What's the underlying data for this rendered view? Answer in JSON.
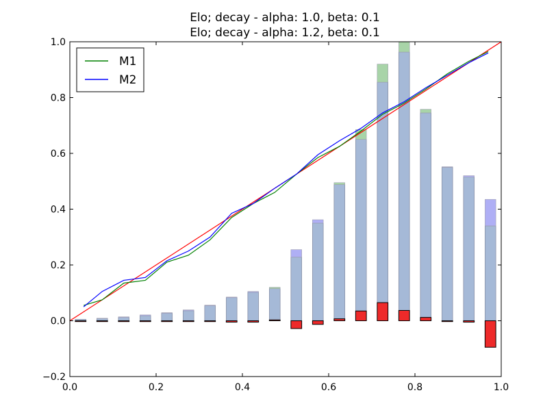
{
  "chart_data": {
    "type": "bar",
    "title_lines": [
      "Elo; decay - alpha: 1.0, beta: 0.1",
      "Elo; decay - alpha: 1.2, beta: 0.1"
    ],
    "xlabel": "",
    "ylabel": "",
    "xlim": [
      0.0,
      1.0
    ],
    "ylim": [
      -0.2,
      1.0
    ],
    "x_ticks": [
      "0.0",
      "0.2",
      "0.4",
      "0.6",
      "0.8",
      "1.0"
    ],
    "y_ticks": [
      "−0.2",
      "0.0",
      "0.2",
      "0.4",
      "0.6",
      "0.8",
      "1.0"
    ],
    "grid": false,
    "legend": {
      "position": "top-left",
      "entries": [
        {
          "name": "M1",
          "color": "#008000"
        },
        {
          "name": "M2",
          "color": "#0000ff"
        }
      ]
    },
    "colors": {
      "m1_bar": "#9fcf9f",
      "m2_bar": "#a6a6f4",
      "overlap_bar": "#a5b9d7",
      "diff_bar": "#ee2a2a",
      "diagonal": "#ff0000"
    },
    "bar_width": 0.025,
    "bars": {
      "x": [
        0.025,
        0.075,
        0.125,
        0.175,
        0.225,
        0.275,
        0.325,
        0.375,
        0.425,
        0.475,
        0.525,
        0.575,
        0.625,
        0.675,
        0.725,
        0.775,
        0.825,
        0.875,
        0.925,
        0.975
      ],
      "m1": [
        0.005,
        0.008,
        0.012,
        0.018,
        0.027,
        0.036,
        0.054,
        0.083,
        0.102,
        0.12,
        0.228,
        0.35,
        0.495,
        0.685,
        0.92,
        1.0,
        0.758,
        0.55,
        0.515,
        0.34
      ],
      "m2": [
        0.005,
        0.009,
        0.014,
        0.021,
        0.029,
        0.039,
        0.056,
        0.085,
        0.105,
        0.115,
        0.255,
        0.362,
        0.488,
        0.65,
        0.855,
        0.963,
        0.745,
        0.552,
        0.52,
        0.435
      ],
      "diff": [
        -0.002,
        -0.002,
        -0.003,
        -0.003,
        -0.003,
        -0.003,
        -0.003,
        -0.005,
        -0.005,
        0.003,
        -0.028,
        -0.013,
        0.007,
        0.035,
        0.065,
        0.037,
        0.012,
        -0.002,
        -0.005,
        -0.095
      ]
    },
    "series": [
      {
        "name": "M1",
        "color": "#008000",
        "x": [
          0.032,
          0.075,
          0.125,
          0.175,
          0.225,
          0.275,
          0.325,
          0.375,
          0.425,
          0.475,
          0.525,
          0.575,
          0.625,
          0.675,
          0.725,
          0.775,
          0.825,
          0.875,
          0.925,
          0.97
        ],
        "y": [
          0.055,
          0.075,
          0.135,
          0.145,
          0.21,
          0.235,
          0.29,
          0.37,
          0.42,
          0.46,
          0.525,
          0.585,
          0.625,
          0.68,
          0.74,
          0.78,
          0.83,
          0.885,
          0.93,
          0.965
        ]
      },
      {
        "name": "M2",
        "color": "#0000ff",
        "x": [
          0.032,
          0.075,
          0.125,
          0.175,
          0.225,
          0.275,
          0.325,
          0.375,
          0.425,
          0.475,
          0.525,
          0.575,
          0.625,
          0.675,
          0.725,
          0.775,
          0.825,
          0.875,
          0.925,
          0.97
        ],
        "y": [
          0.05,
          0.105,
          0.145,
          0.155,
          0.215,
          0.25,
          0.3,
          0.385,
          0.42,
          0.475,
          0.525,
          0.595,
          0.645,
          0.69,
          0.745,
          0.785,
          0.835,
          0.88,
          0.925,
          0.96
        ]
      }
    ],
    "diagonal": {
      "x": [
        0.0,
        1.0
      ],
      "y": [
        0.0,
        1.0
      ]
    }
  }
}
